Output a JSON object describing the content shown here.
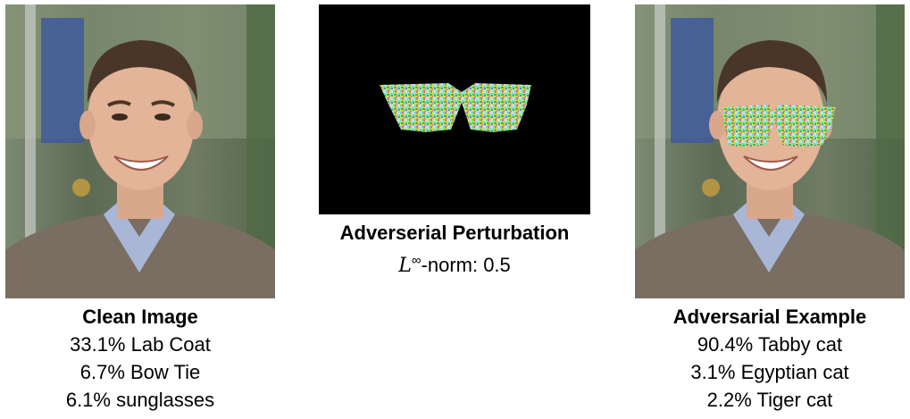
{
  "panels": {
    "clean": {
      "title": "Clean Image",
      "predictions": [
        "33.1% Lab Coat",
        "6.7% Bow Tie",
        "6.1% sunglasses"
      ]
    },
    "perturbation": {
      "title": "Adverserial Perturbation",
      "norm_symbol": "L",
      "norm_exponent": "∞",
      "norm_text": "-norm: 0.5"
    },
    "adversarial": {
      "title": "Adversarial Example",
      "predictions": [
        "90.4% Tabby cat",
        "3.1% Egyptian cat",
        "2.2% Tiger cat"
      ]
    }
  }
}
